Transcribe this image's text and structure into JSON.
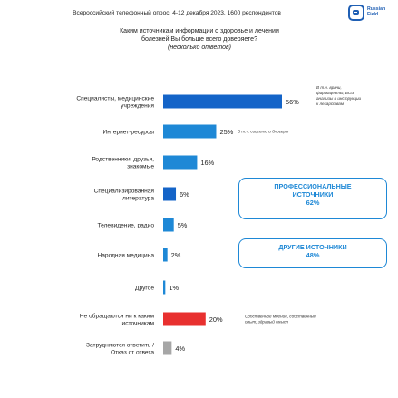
{
  "header": {
    "survey": "Всероссийский телефонный опрос, 4-12 декабря 2023, 1600 респондентов",
    "logo_line1": "Russian",
    "logo_line2": "Field"
  },
  "question": {
    "line1": "Каким источникам информации о здоровье и лечении",
    "line2": "болезней Вы больше всего доверяете?",
    "line3": "(несколько ответов)"
  },
  "callouts": {
    "professional": {
      "title_line1": "ПРОФЕССИОНАЛЬНЫЕ",
      "title_line2": "ИСТОЧНИКИ",
      "value": "62%"
    },
    "other": {
      "title": "ДРУГИЕ ИСТОЧНИКИ",
      "value": "48%"
    }
  },
  "chart_data": {
    "type": "bar",
    "orientation": "horizontal",
    "xlim": [
      0,
      56
    ],
    "colors": {
      "professional": "#1464c8",
      "secondary": "#1e88d6",
      "negative": "#e8302f",
      "neutral": "#a6a6a6"
    },
    "bars": [
      {
        "label_lines": [
          "Специалисты, медицинские",
          "учреждения"
        ],
        "value": 56,
        "value_label": "56%",
        "color": "#1464c8",
        "note_lines": [
          "В т.ч. врачи,",
          "фармацевты, ВОЗ,",
          "анализы и инструкции",
          "к лекарствам"
        ]
      },
      {
        "label_lines": [
          "Интернет-ресурсы"
        ],
        "value": 25,
        "value_label": "25%",
        "color": "#1e88d6",
        "note_lines": [
          "В т.ч. соцсети и блогеры"
        ]
      },
      {
        "label_lines": [
          "Родственники, друзья,",
          "знакомые"
        ],
        "value": 16,
        "value_label": "16%",
        "color": "#1e88d6",
        "note_lines": []
      },
      {
        "label_lines": [
          "Специализированная",
          "литература"
        ],
        "value": 6,
        "value_label": "6%",
        "color": "#1464c8",
        "note_lines": []
      },
      {
        "label_lines": [
          "Телевидение, радио"
        ],
        "value": 5,
        "value_label": "5%",
        "color": "#1e88d6",
        "note_lines": []
      },
      {
        "label_lines": [
          "Народная медицина"
        ],
        "value": 2,
        "value_label": "2%",
        "color": "#1e88d6",
        "note_lines": []
      },
      {
        "label_lines": [
          "Другое"
        ],
        "value": 1,
        "value_label": "1%",
        "color": "#1e88d6",
        "note_lines": []
      },
      {
        "label_lines": [
          "Не обращаются ни к каким",
          "источникам"
        ],
        "value": 20,
        "value_label": "20%",
        "color": "#e8302f",
        "note_lines": [
          "Собственное мнение, собственный",
          "опыт, здравый смысл"
        ]
      },
      {
        "label_lines": [
          "Затрудняются ответить /",
          "Отказ от ответа"
        ],
        "value": 4,
        "value_label": "4%",
        "color": "#a6a6a6",
        "note_lines": []
      }
    ]
  }
}
